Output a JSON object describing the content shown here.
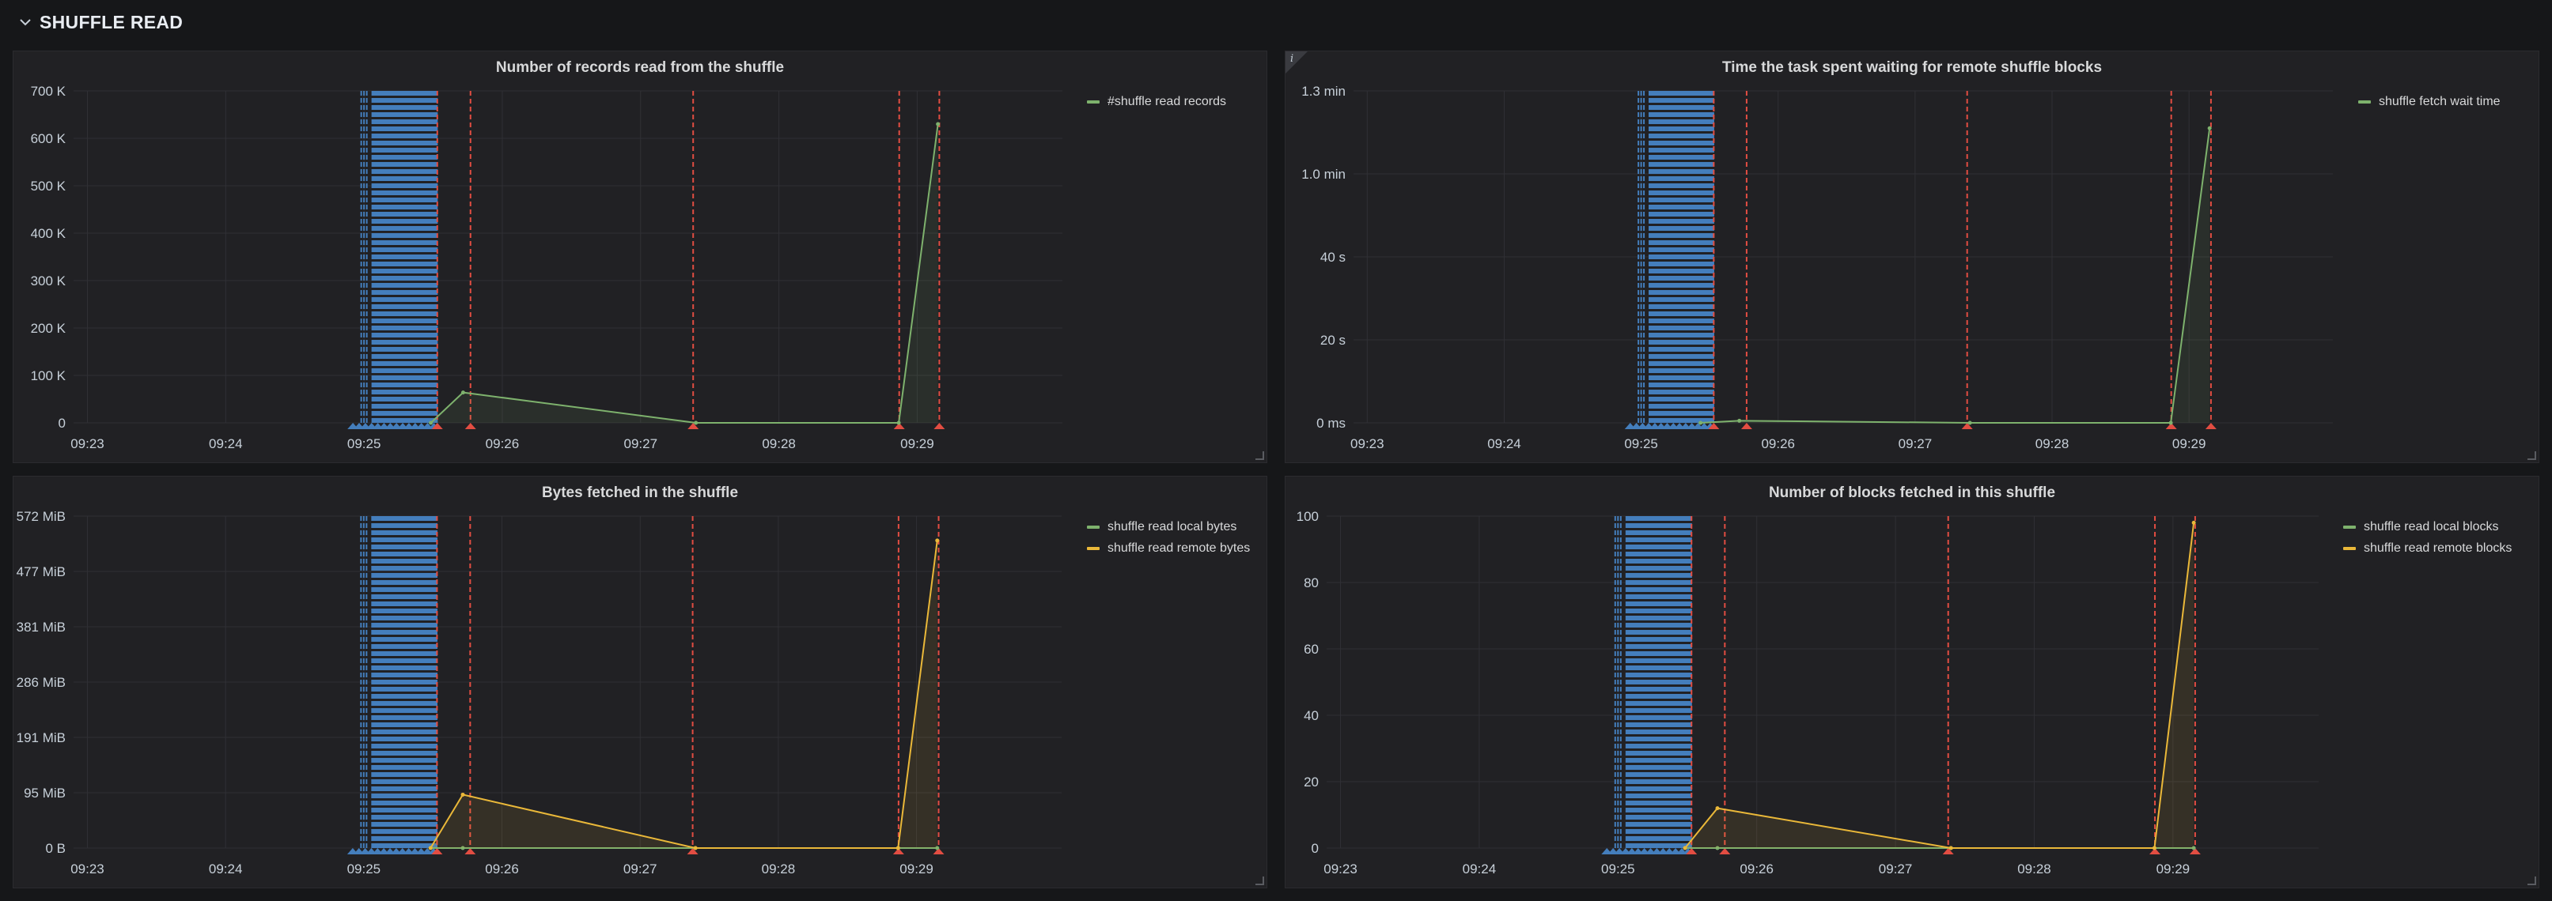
{
  "row": {
    "title": "SHUFFLE READ"
  },
  "colors": {
    "green": "#7eb26d",
    "yellow": "#eab839",
    "annotation_blue": "#447ebc",
    "annotation_red": "#e24d42",
    "grid": "#303035"
  },
  "icons": {
    "row_toggle": "chevron-down-icon",
    "panel_info": "info-icon",
    "resize": "resize-handle-icon"
  },
  "chart_data": [
    {
      "type": "area",
      "title": "Number of records read from the shuffle",
      "x_ticks": [
        "09:23",
        "09:24",
        "09:25",
        "09:26",
        "09:27",
        "09:28",
        "09:29"
      ],
      "y_ticks": [
        "0",
        "100 K",
        "200 K",
        "300 K",
        "400 K",
        "500 K",
        "600 K",
        "700 K"
      ],
      "ylim": [
        0,
        700000
      ],
      "series": [
        {
          "name": "#shuffle read records",
          "color": "#7eb26d",
          "x": [
            "09:25:29",
            "09:25:43",
            "09:27:24",
            "09:28:52",
            "09:29:09"
          ],
          "values": [
            0,
            64000,
            0,
            0,
            630000
          ]
        }
      ],
      "legend_position": "right",
      "grid": true
    },
    {
      "type": "area",
      "title": "Time the task spent waiting for remote shuffle blocks",
      "x_ticks": [
        "09:23",
        "09:24",
        "09:25",
        "09:26",
        "09:27",
        "09:28",
        "09:29"
      ],
      "y_ticks": [
        "0 ms",
        "20 s",
        "40 s",
        "1.0 min",
        "1.3 min"
      ],
      "ylim": [
        0,
        80
      ],
      "series": [
        {
          "name": "shuffle fetch wait time",
          "color": "#7eb26d",
          "x": [
            "09:25:26",
            "09:25:43",
            "09:27:24",
            "09:28:52",
            "09:29:09"
          ],
          "values": [
            0,
            0.5,
            0,
            0,
            71
          ]
        }
      ],
      "legend_position": "right",
      "grid": true
    },
    {
      "type": "area",
      "title": "Bytes fetched in the shuffle",
      "x_ticks": [
        "09:23",
        "09:24",
        "09:25",
        "09:26",
        "09:27",
        "09:28",
        "09:29"
      ],
      "y_ticks": [
        "0 B",
        "95 MiB",
        "191 MiB",
        "286 MiB",
        "381 MiB",
        "477 MiB",
        "572 MiB"
      ],
      "ylim": [
        0,
        572
      ],
      "series": [
        {
          "name": "shuffle read local bytes",
          "color": "#7eb26d",
          "x": [
            "09:25:29",
            "09:25:43",
            "09:27:24",
            "09:28:52",
            "09:29:09"
          ],
          "values": [
            0,
            0,
            0,
            0,
            0
          ]
        },
        {
          "name": "shuffle read remote bytes",
          "color": "#eab839",
          "x": [
            "09:25:29",
            "09:25:43",
            "09:27:24",
            "09:28:52",
            "09:29:09"
          ],
          "values": [
            0,
            92,
            0,
            0,
            530
          ]
        }
      ],
      "legend_position": "right",
      "grid": true
    },
    {
      "type": "area",
      "title": "Number of blocks fetched in this shuffle",
      "x_ticks": [
        "09:23",
        "09:24",
        "09:25",
        "09:26",
        "09:27",
        "09:28",
        "09:29"
      ],
      "y_ticks": [
        "0",
        "20",
        "40",
        "60",
        "80",
        "100"
      ],
      "ylim": [
        0,
        100
      ],
      "series": [
        {
          "name": "shuffle read local blocks",
          "color": "#7eb26d",
          "x": [
            "09:25:29",
            "09:25:43",
            "09:27:24",
            "09:28:52",
            "09:29:09"
          ],
          "values": [
            0,
            0,
            0,
            0,
            0
          ]
        },
        {
          "name": "shuffle read remote blocks",
          "color": "#eab839",
          "x": [
            "09:25:29",
            "09:25:43",
            "09:27:24",
            "09:28:52",
            "09:29:09"
          ],
          "values": [
            0,
            12,
            0,
            0,
            98
          ]
        }
      ],
      "legend_position": "right",
      "grid": true
    }
  ]
}
